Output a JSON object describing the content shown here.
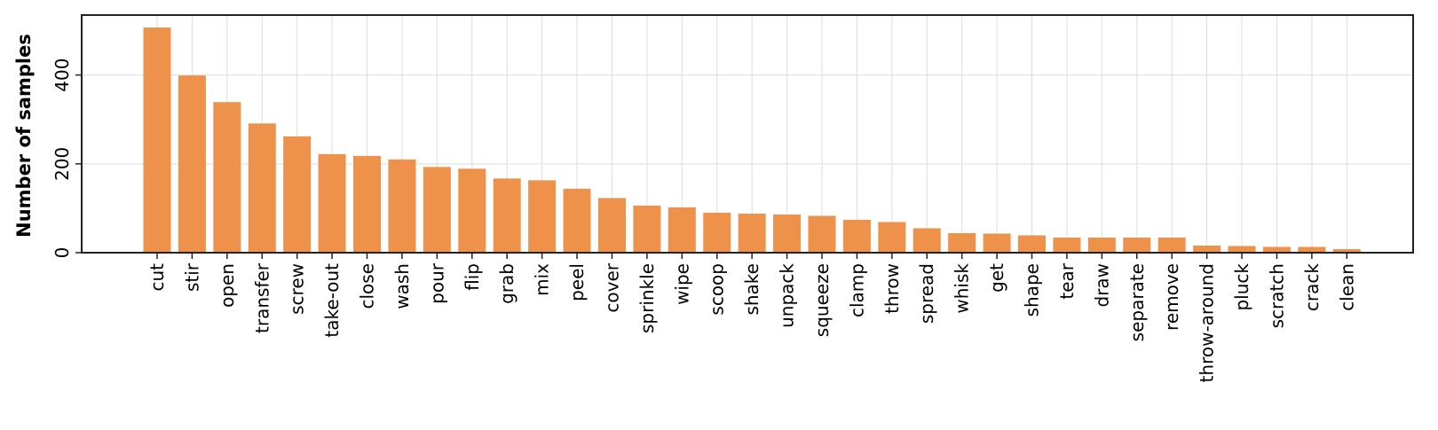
{
  "chart_data": {
    "type": "bar",
    "title": "",
    "xlabel": "",
    "ylabel": "Number of samples",
    "ylim": [
      0,
      535
    ],
    "yticks": [
      0,
      200,
      400
    ],
    "grid": true,
    "legend": "none",
    "bar_color": "#EE914A",
    "grid_color": "#DDDDDD",
    "categories": [
      "cut",
      "stir",
      "open",
      "transfer",
      "screw",
      "take-out",
      "close",
      "wash",
      "pour",
      "flip",
      "grab",
      "mix",
      "peel",
      "cover",
      "sprinkle",
      "wipe",
      "scoop",
      "shake",
      "unpack",
      "squeeze",
      "clamp",
      "throw",
      "spread",
      "whisk",
      "get",
      "shape",
      "tear",
      "draw",
      "separate",
      "remove",
      "throw-around",
      "pluck",
      "scratch",
      "crack",
      "clean"
    ],
    "values": [
      507,
      399,
      339,
      291,
      262,
      222,
      218,
      210,
      193,
      189,
      167,
      163,
      144,
      123,
      106,
      102,
      90,
      88,
      86,
      83,
      74,
      69,
      55,
      44,
      43,
      39,
      34,
      34,
      34,
      34,
      16,
      15,
      13,
      13,
      8
    ]
  }
}
